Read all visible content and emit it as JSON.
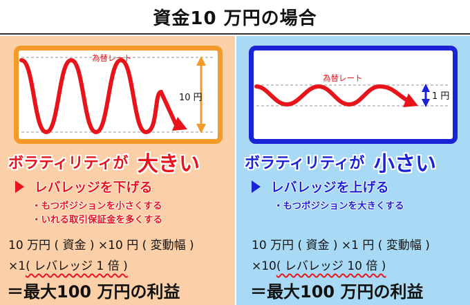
{
  "title": "資金10 万円の場合",
  "left": {
    "rate_label": "為替レート",
    "range_label": "10 円",
    "volatility_text": "ボラティリティが",
    "volatility_size": "大きい",
    "leverage_text": "レバレッジを下げる",
    "bullets": [
      "・もつポジションを小さくする",
      "・いれる取引保証金を多くする"
    ],
    "calc_line1": "10 万円 ( 資金 ) ×10 円 ( 変動幅 )",
    "calc_prefix": "×1",
    "calc_leverage": "( レバレッジ 1 倍 )",
    "result": "＝最大100 万円の利益",
    "colors": {
      "accent": "#e8141b",
      "frame": "#f39a28",
      "background": "#fbd0a8"
    }
  },
  "right": {
    "rate_label": "為替レート",
    "range_label": "1 円",
    "volatility_text": "ボラティリティが",
    "volatility_size": "小さい",
    "leverage_text": "レバレッジを上げる",
    "bullets": [
      "・もつポジションを大きくする"
    ],
    "calc_line1": "10 万円 ( 資金 ) ×1 円 ( 変動幅 )",
    "calc_prefix": "×10",
    "calc_leverage": "( レバレッジ 10 倍 )",
    "result": "＝最大100 万円の利益",
    "colors": {
      "accent": "#1a23d6",
      "frame": "#1a23d6",
      "background": "#a8daf5"
    }
  }
}
